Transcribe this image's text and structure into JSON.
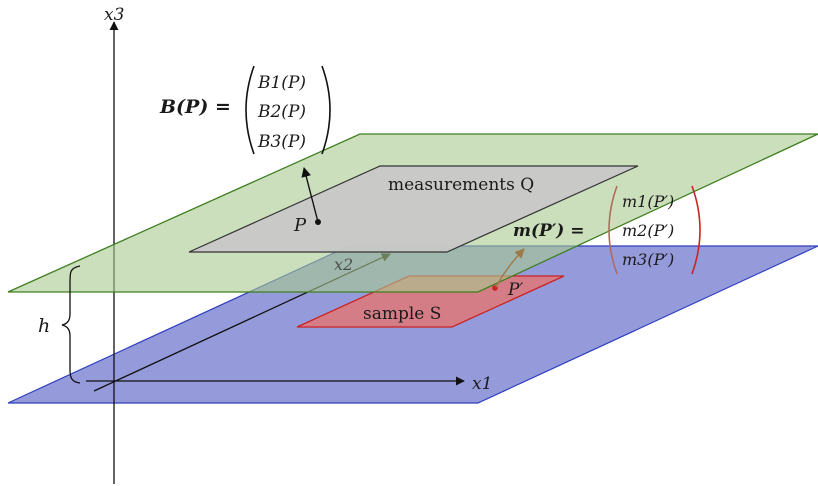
{
  "axes": {
    "x1_label": "x1",
    "x2_label": "x2",
    "x3_label": "x3"
  },
  "height_label": "h",
  "field_equation": {
    "lhs": "B(P) =",
    "components": [
      "B1(P)",
      "B2(P)",
      "B3(P)"
    ]
  },
  "moment_equation": {
    "lhs": "m(P′) =",
    "components": [
      "m1(P′)",
      "m2(P′)",
      "m3(P′)"
    ]
  },
  "measurement_plane_label": "measurements Q",
  "sample_label": "sample S",
  "point_P_label": "P",
  "point_Pprime_label": "P′",
  "colors": {
    "blue_plane_fill": "#7b82d1",
    "blue_plane_stroke": "#2f3fbf",
    "green_plane_fill": "#a9c98f",
    "green_plane_stroke": "#3f7f1f",
    "gray_plane_fill": "#c8c8c8",
    "gray_plane_stroke": "#333333",
    "red_plane_fill": "#e07878",
    "red_plane_stroke": "#cc2222",
    "moment_text_brown": "#9c7a4a",
    "moment_text_red": "#cc2222"
  }
}
